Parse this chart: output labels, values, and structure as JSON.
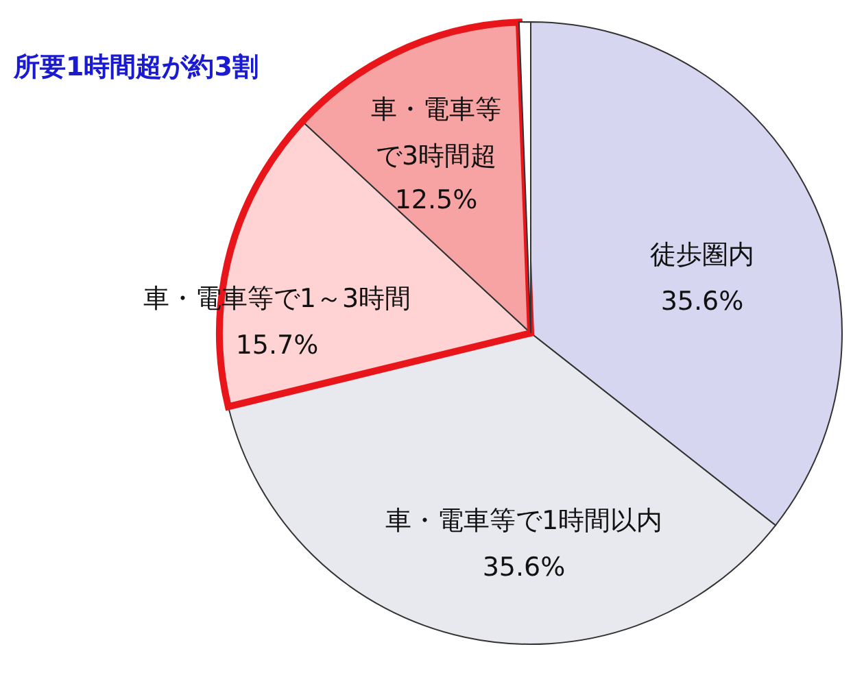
{
  "chart_data": {
    "type": "pie",
    "categories": [
      "徒歩圏内",
      "車・電車等で1時間以内",
      "車・電車等で1～3時間",
      "車・電車等で3時間超",
      null
    ],
    "values": [
      35.6,
      35.6,
      15.7,
      12.5,
      0.6
    ],
    "colors": [
      "#d6d6f0",
      "#e8e8ef",
      "#ffd3d3",
      "#f7a3a3",
      "#ffffff"
    ],
    "value_labels": [
      "35.6%",
      "35.6%",
      "15.7%",
      "12.5%",
      null
    ],
    "annotations": [
      "所要1時間超が約3割"
    ]
  }
}
